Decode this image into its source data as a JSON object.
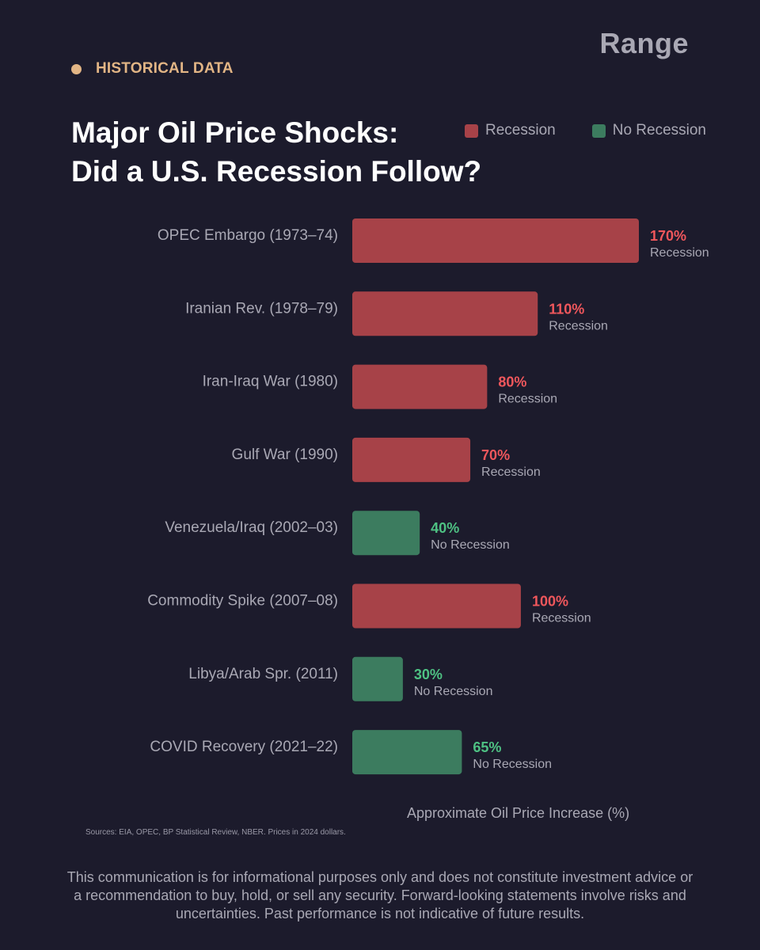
{
  "brand": {
    "name": "Range"
  },
  "header": {
    "eyebrow": "HISTORICAL DATA",
    "title_line1": "Major Oil Price Shocks:",
    "title_line2": "Did a U.S. Recession Follow?"
  },
  "legend": {
    "items": [
      {
        "label": "Recession",
        "color": "#a74248"
      },
      {
        "label": "No Recession",
        "color": "#3c7c5f"
      }
    ]
  },
  "colors": {
    "background": "#1c1b2c",
    "accent": "#e2b585",
    "recession_bar": "#a74248",
    "no_recession_bar": "#3c7c5f",
    "recession_text": "#f0575c",
    "no_recession_text": "#4ec183",
    "muted_text": "#a9a8b4"
  },
  "chart_data": {
    "type": "bar",
    "orientation": "horizontal",
    "title": "Major Oil Price Shocks: Did a U.S. Recession Follow?",
    "xlabel": "Approximate Oil Price Increase (%)",
    "ylabel": "",
    "xlim": [
      0,
      170
    ],
    "grid": false,
    "legend_position": "top-right",
    "categories": [
      "OPEC Embargo (1973–74)",
      "Iranian Rev. (1978–79)",
      "Iran-Iraq War (1980)",
      "Gulf War (1990)",
      "Venezuela/Iraq (2002–03)",
      "Commodity Spike (2007–08)",
      "Libya/Arab Spr. (2011)",
      "COVID Recovery (2021–22)"
    ],
    "values": [
      170,
      110,
      80,
      70,
      40,
      100,
      30,
      65
    ],
    "value_labels": [
      "170%",
      "110%",
      "80%",
      "70%",
      "40%",
      "100%",
      "30%",
      "65%"
    ],
    "outcomes": [
      "Recession",
      "Recession",
      "Recession",
      "Recession",
      "No Recession",
      "Recession",
      "No Recession",
      "No Recession"
    ]
  },
  "footer": {
    "sources": "Sources: EIA, OPEC, BP Statistical Review, NBER. Prices in 2024 dollars.",
    "disclaimer": "This communication is for informational purposes only and does not constitute investment advice or a recommendation to buy, hold, or sell any security. Forward-looking statements involve risks and uncertainties. Past performance is not indicative of future results."
  }
}
